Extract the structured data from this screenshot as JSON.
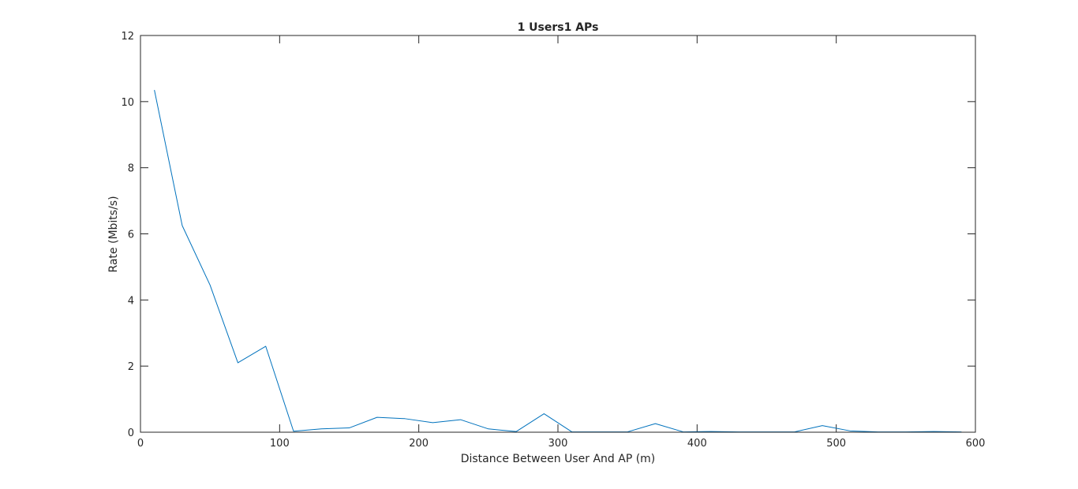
{
  "chart_data": {
    "type": "line",
    "title": "1 Users1 APs",
    "xlabel": "Distance Between User And AP (m)",
    "ylabel": "Rate (Mbits/s)",
    "xlim": [
      0,
      600
    ],
    "ylim": [
      0,
      12
    ],
    "xticks": [
      0,
      100,
      200,
      300,
      400,
      500,
      600
    ],
    "yticks": [
      0,
      2,
      4,
      6,
      8,
      10,
      12
    ],
    "xtick_labels": [
      "0",
      "100",
      "200",
      "300",
      "400",
      "500",
      "600"
    ],
    "ytick_labels": [
      "0",
      "2",
      "4",
      "6",
      "8",
      "10",
      "12"
    ],
    "grid": false,
    "legend": null,
    "series": [
      {
        "color": "#0072bd",
        "x": [
          10,
          30,
          50,
          70,
          90,
          110,
          130,
          150,
          170,
          190,
          210,
          230,
          250,
          270,
          290,
          310,
          330,
          350,
          370,
          390,
          410,
          430,
          450,
          470,
          490,
          510,
          530,
          550,
          570,
          590
        ],
        "y": [
          10.35,
          6.25,
          4.45,
          2.1,
          2.6,
          0.03,
          0.1,
          0.13,
          0.45,
          0.41,
          0.29,
          0.38,
          0.1,
          0.02,
          0.56,
          0.01,
          0.01,
          0.01,
          0.26,
          0.01,
          0.02,
          0.01,
          0.01,
          0.01,
          0.2,
          0.04,
          0.01,
          0.01,
          0.02,
          0.01
        ]
      }
    ]
  }
}
